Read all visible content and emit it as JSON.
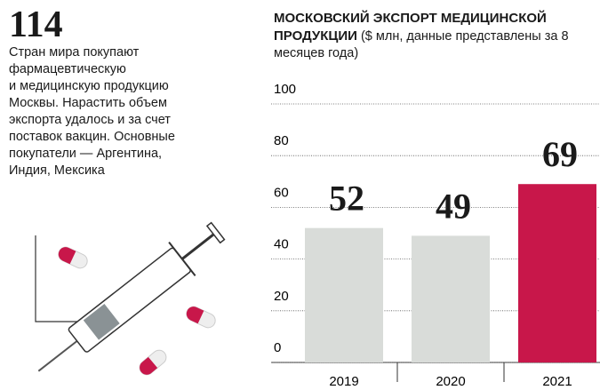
{
  "chart_data": {
    "type": "bar",
    "title": "МОСКОВСКИЙ ЭКСПОРТ МЕДИЦИНСКОЙ ПРОДУКЦИИ",
    "subtitle": "($ млн, данные представлены за 8 месяцев года)",
    "categories": [
      "2019",
      "2020",
      "2021"
    ],
    "values": [
      52,
      49,
      69
    ],
    "colors": [
      "#d9dcd9",
      "#d9dcd9",
      "#c8174a"
    ],
    "ylim": [
      0,
      100
    ],
    "yticks": [
      0,
      20,
      40,
      60,
      80,
      100
    ],
    "grid": true
  },
  "aside": {
    "number": "114",
    "lines": [
      "Стран мира покупают",
      "фармацевтическую",
      "и медицинскую продукцию",
      "Москвы. Нарастить объем",
      "экспорта удалось и за счет",
      "поставок вакцин. Основные",
      "покупатели — Аргентина,",
      "Индия, Мексика"
    ]
  }
}
